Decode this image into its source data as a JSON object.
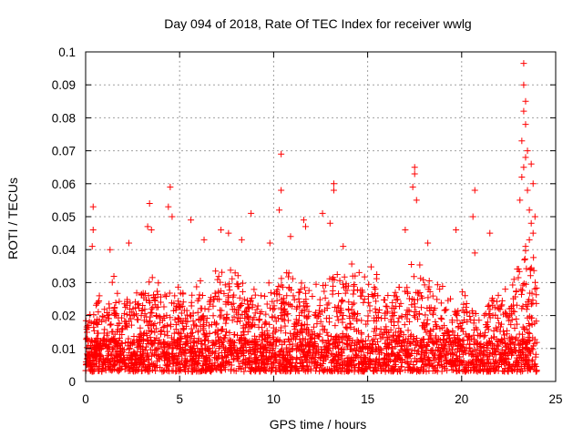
{
  "chart_data": {
    "type": "scatter",
    "title": "Day 094 of 2018, Rate Of TEC Index for receiver wwlg",
    "xlabel": "GPS time / hours",
    "ylabel": "ROTI / TECUs",
    "xlim": [
      0,
      25
    ],
    "ylim": [
      0,
      0.1
    ],
    "xticks": [
      0,
      5,
      10,
      15,
      20,
      25
    ],
    "xtick_labels": [
      "0",
      "5",
      "10",
      "15",
      "20",
      "25"
    ],
    "yticks": [
      0,
      0.01,
      0.02,
      0.03,
      0.04,
      0.05,
      0.06,
      0.07,
      0.08,
      0.09,
      0.1
    ],
    "ytick_labels": [
      "0",
      "0.01",
      "0.02",
      "0.03",
      "0.04",
      "0.05",
      "0.06",
      "0.07",
      "0.08",
      "0.09",
      "0.1"
    ],
    "grid": true,
    "marker": "+",
    "color": "#ff0000",
    "series": [
      {
        "name": "ROTI",
        "x_range_hours": [
          0,
          24
        ],
        "bulk_range": [
          0.003,
          0.03
        ],
        "envelope": [
          [
            0.0,
            0.022
          ],
          [
            0.5,
            0.03
          ],
          [
            1.0,
            0.025
          ],
          [
            1.5,
            0.033
          ],
          [
            2.0,
            0.025
          ],
          [
            2.5,
            0.032
          ],
          [
            3.0,
            0.033
          ],
          [
            3.5,
            0.036
          ],
          [
            4.0,
            0.03
          ],
          [
            4.5,
            0.032
          ],
          [
            5.0,
            0.03
          ],
          [
            5.5,
            0.03
          ],
          [
            6.0,
            0.035
          ],
          [
            6.5,
            0.03
          ],
          [
            7.0,
            0.036
          ],
          [
            7.5,
            0.04
          ],
          [
            8.0,
            0.037
          ],
          [
            8.5,
            0.035
          ],
          [
            9.0,
            0.03
          ],
          [
            9.5,
            0.03
          ],
          [
            10.0,
            0.035
          ],
          [
            10.5,
            0.038
          ],
          [
            11.0,
            0.036
          ],
          [
            11.5,
            0.035
          ],
          [
            12.0,
            0.03
          ],
          [
            12.5,
            0.035
          ],
          [
            13.0,
            0.035
          ],
          [
            13.5,
            0.035
          ],
          [
            14.0,
            0.036
          ],
          [
            14.5,
            0.037
          ],
          [
            15.0,
            0.037
          ],
          [
            15.5,
            0.035
          ],
          [
            16.0,
            0.028
          ],
          [
            16.5,
            0.03
          ],
          [
            17.0,
            0.035
          ],
          [
            17.5,
            0.039
          ],
          [
            18.0,
            0.04
          ],
          [
            18.5,
            0.035
          ],
          [
            19.0,
            0.032
          ],
          [
            19.5,
            0.025
          ],
          [
            20.0,
            0.03
          ],
          [
            20.5,
            0.026
          ],
          [
            21.0,
            0.02
          ],
          [
            21.5,
            0.027
          ],
          [
            22.0,
            0.032
          ],
          [
            22.5,
            0.03
          ],
          [
            23.0,
            0.038
          ],
          [
            23.5,
            0.045
          ],
          [
            24.0,
            0.04
          ]
        ],
        "spikes": [
          [
            0.4,
            0.053
          ],
          [
            0.4,
            0.046
          ],
          [
            0.35,
            0.041
          ],
          [
            1.3,
            0.04
          ],
          [
            2.3,
            0.042
          ],
          [
            3.4,
            0.054
          ],
          [
            3.3,
            0.047
          ],
          [
            3.5,
            0.046
          ],
          [
            4.5,
            0.059
          ],
          [
            4.4,
            0.053
          ],
          [
            4.6,
            0.05
          ],
          [
            5.6,
            0.049
          ],
          [
            6.3,
            0.043
          ],
          [
            7.2,
            0.046
          ],
          [
            7.6,
            0.045
          ],
          [
            8.3,
            0.043
          ],
          [
            8.8,
            0.051
          ],
          [
            9.8,
            0.042
          ],
          [
            10.4,
            0.069
          ],
          [
            10.4,
            0.058
          ],
          [
            10.3,
            0.052
          ],
          [
            10.9,
            0.044
          ],
          [
            11.6,
            0.049
          ],
          [
            11.7,
            0.047
          ],
          [
            12.6,
            0.051
          ],
          [
            13.2,
            0.06
          ],
          [
            13.2,
            0.058
          ],
          [
            13.0,
            0.048
          ],
          [
            13.7,
            0.041
          ],
          [
            17.5,
            0.065
          ],
          [
            17.5,
            0.063
          ],
          [
            17.4,
            0.059
          ],
          [
            17.6,
            0.055
          ],
          [
            17.0,
            0.046
          ],
          [
            18.2,
            0.042
          ],
          [
            19.7,
            0.046
          ],
          [
            20.7,
            0.058
          ],
          [
            20.6,
            0.05
          ],
          [
            20.7,
            0.039
          ],
          [
            21.5,
            0.045
          ],
          [
            23.3,
            0.0965
          ],
          [
            23.3,
            0.09
          ],
          [
            23.4,
            0.085
          ],
          [
            23.3,
            0.082
          ],
          [
            23.4,
            0.078
          ],
          [
            23.2,
            0.073
          ],
          [
            23.5,
            0.07
          ],
          [
            23.4,
            0.068
          ],
          [
            23.3,
            0.065
          ],
          [
            23.2,
            0.062
          ],
          [
            23.5,
            0.058
          ],
          [
            23.1,
            0.055
          ],
          [
            23.7,
            0.066
          ],
          [
            23.8,
            0.06
          ],
          [
            23.6,
            0.052
          ],
          [
            23.9,
            0.05
          ],
          [
            23.7,
            0.048
          ],
          [
            23.8,
            0.045
          ],
          [
            23.6,
            0.043
          ],
          [
            23.4,
            0.041
          ]
        ]
      }
    ]
  }
}
